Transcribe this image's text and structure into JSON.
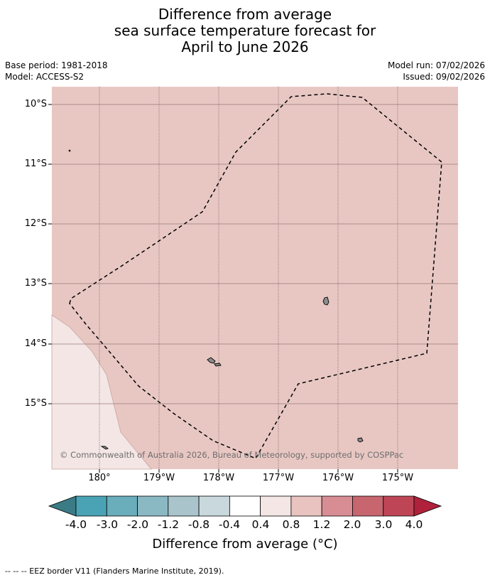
{
  "title": {
    "line1": "Difference from average",
    "line2": "sea surface temperature forecast for",
    "line3": "April to June 2026"
  },
  "meta": {
    "base_period": "Base period: 1981-2018",
    "model": "Model: ACCESS-S2",
    "model_run": "Model run: 07/02/2026",
    "issued": "Issued: 09/02/2026"
  },
  "map": {
    "background_color": "#e8c7c3",
    "light_region_color": "#f3e6e4",
    "land_color": "#8c8c8c",
    "latitude_labels": [
      "10°S",
      "11°S",
      "12°S",
      "13°S",
      "14°S",
      "15°S"
    ],
    "longitude_labels": [
      "180°",
      "179°W",
      "178°W",
      "177°W",
      "176°W",
      "175°W"
    ],
    "copyright": "© Commonwealth of Australia 2026, Bureau of Meteorology, supported by COSPPac"
  },
  "colorbar": {
    "title": "Difference from average (°C)",
    "tick_labels": [
      "-4.0",
      "-3.0",
      "-2.0",
      "-1.2",
      "-0.8",
      "-0.4",
      "0.4",
      "0.8",
      "1.2",
      "2.0",
      "3.0",
      "4.0"
    ],
    "colors": [
      "#3b7b85",
      "#4aa3b4",
      "#6aadbb",
      "#8ab9c4",
      "#a9c5cb",
      "#c9d8dc",
      "#ffffff",
      "#f3e6e4",
      "#e8c3c0",
      "#d88d94",
      "#c86670",
      "#be4555",
      "#b0213b"
    ]
  },
  "footnote": "-- -- -- EEZ border V11 (Flanders Marine Institute, 2019)."
}
